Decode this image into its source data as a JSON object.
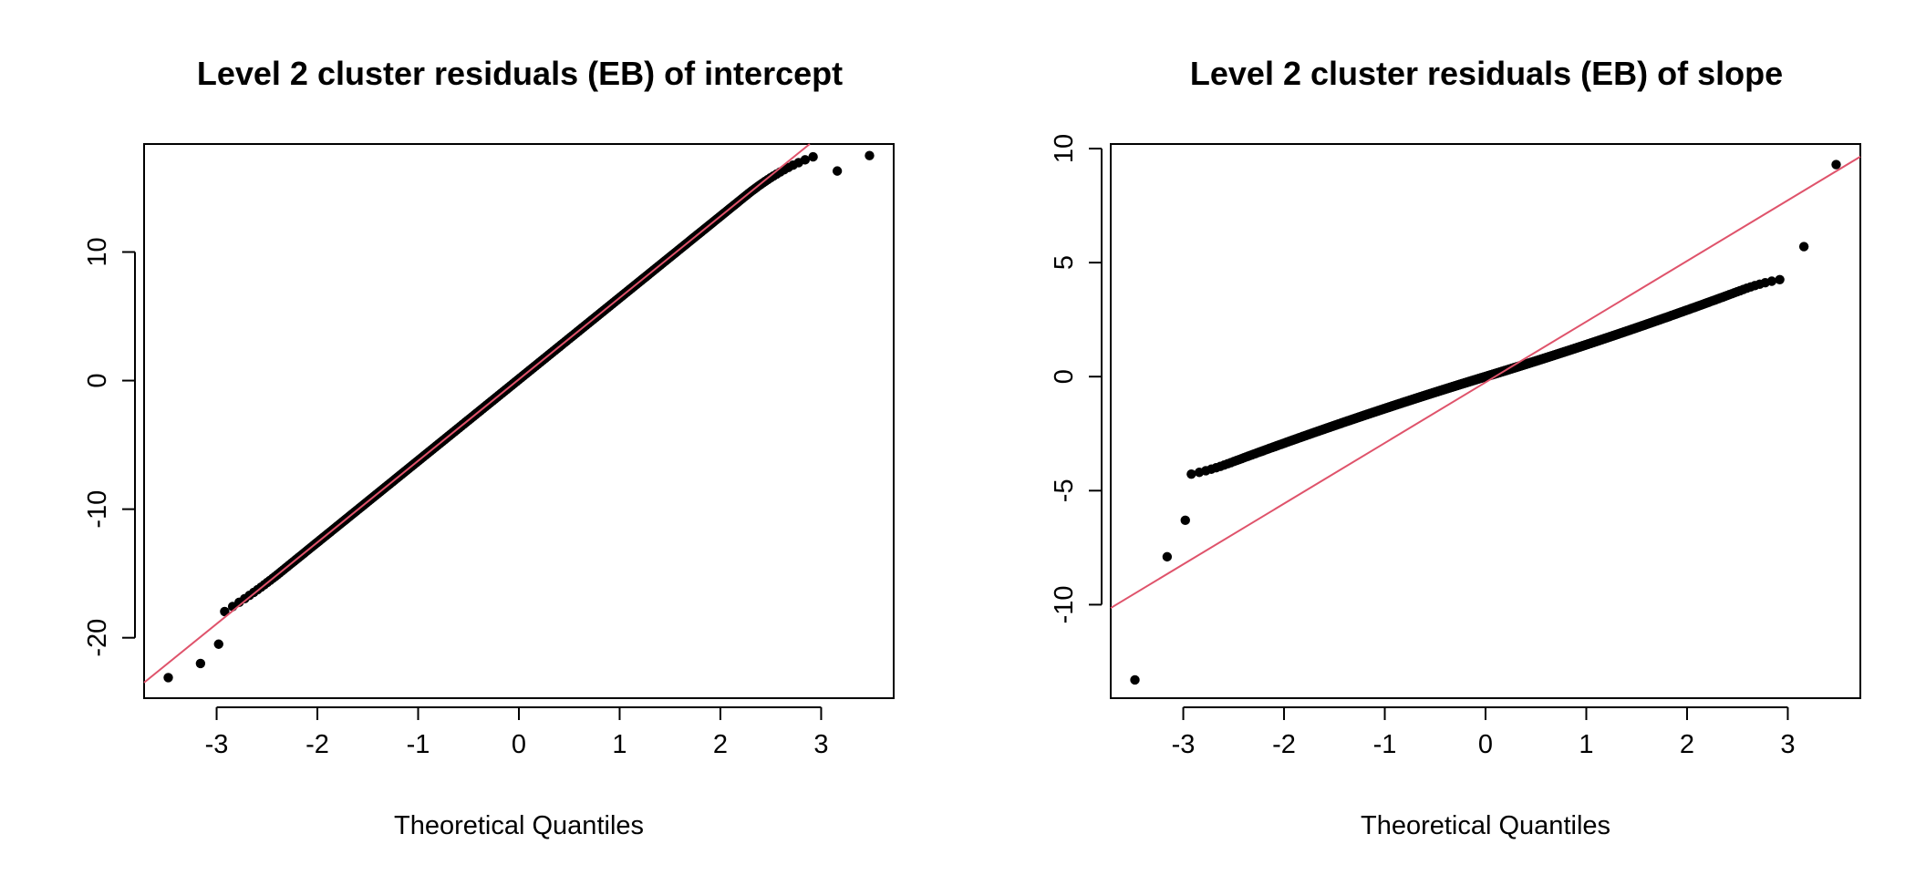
{
  "chart_data": [
    {
      "type": "scatter",
      "title": "Level 2 cluster  residuals (EB) of intercept",
      "xlabel": "Theoretical Quantiles",
      "ylabel": "",
      "xlim": [
        -3.72,
        3.72
      ],
      "ylim": [
        -24.7,
        18.4
      ],
      "xticks": [
        -3,
        -2,
        -1,
        0,
        1,
        2,
        3
      ],
      "xtick_labels": [
        "-3",
        "-2",
        "-1",
        "0",
        "1",
        "2",
        "3"
      ],
      "yticks": [
        -20,
        -10,
        0,
        10
      ],
      "ytick_labels": [
        "-20",
        "-10",
        "0",
        "10"
      ],
      "grid": false,
      "point_color": "#000000",
      "line_color": "#DF536B",
      "reference_line": {
        "intercept": 0.1,
        "slope": 6.34
      },
      "n_points": 2000,
      "model": {
        "a": 0.1,
        "b": 6.34,
        "c": 0.0,
        "lower_tail": {
          "q": 2.35,
          "k": 1.4
        },
        "upper_tail": {
          "q": 2.25,
          "k": 2.7
        }
      },
      "extreme_points": [
        {
          "x": -3.48,
          "y": -23.1
        },
        {
          "x": -3.16,
          "y": -22.0
        },
        {
          "x": -2.98,
          "y": -20.5
        },
        {
          "x": 3.16,
          "y": 16.3
        },
        {
          "x": 3.48,
          "y": 17.5
        }
      ]
    },
    {
      "type": "scatter",
      "title": "Level 2 cluster  residuals (EB) of slope",
      "xlabel": "Theoretical Quantiles",
      "ylabel": "",
      "xlim": [
        -3.72,
        3.72
      ],
      "ylim": [
        -14.1,
        10.2
      ],
      "xticks": [
        -3,
        -2,
        -1,
        0,
        1,
        2,
        3
      ],
      "xtick_labels": [
        "-3",
        "-2",
        "-1",
        "0",
        "1",
        "2",
        "3"
      ],
      "yticks": [
        -10,
        -5,
        0,
        5,
        10
      ],
      "ytick_labels": [
        "-10",
        "-5",
        "0",
        "5",
        "10"
      ],
      "grid": false,
      "point_color": "#000000",
      "line_color": "#DF536B",
      "reference_line": {
        "intercept": -0.25,
        "slope": 2.66
      },
      "n_points": 2000,
      "model": {
        "a": 0.0,
        "b": 1.34,
        "c": 0.06,
        "lower_tail": {
          "q": 2.55,
          "k": 1.1
        },
        "upper_tail": {
          "q": 2.55,
          "k": 1.25
        }
      },
      "extreme_points": [
        {
          "x": -3.48,
          "y": -13.3
        },
        {
          "x": -3.16,
          "y": -7.9
        },
        {
          "x": -2.98,
          "y": -6.3
        },
        {
          "x": 3.16,
          "y": 5.7
        },
        {
          "x": 3.48,
          "y": 9.3
        }
      ]
    }
  ]
}
